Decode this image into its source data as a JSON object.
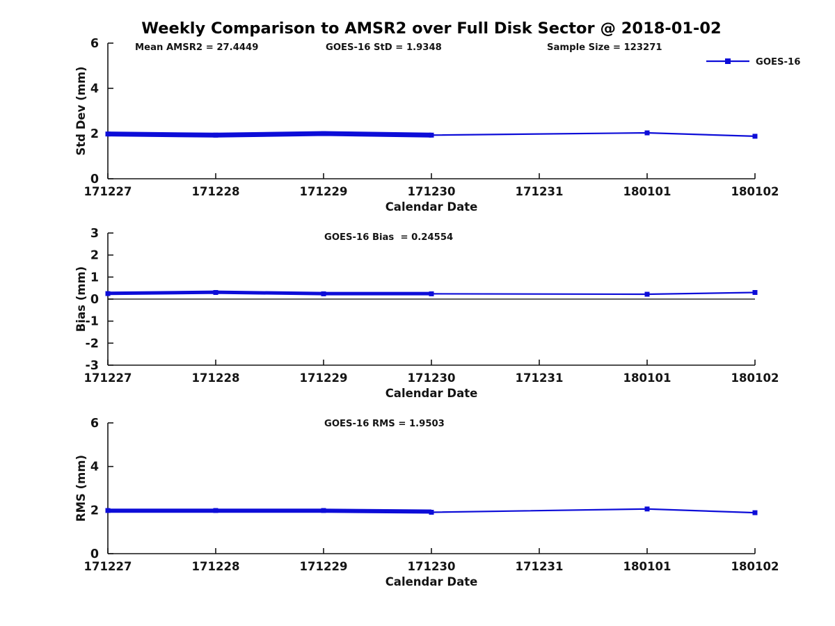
{
  "title": "Weekly Comparison to AMSR2 over Full Disk Sector @ 2018-01-02",
  "legend": {
    "label": "GOES-16",
    "color": "#0d0dd8",
    "marker": "square",
    "position": "top-right-of-first-subplot"
  },
  "x_axis_label": "Calendar Date",
  "chart_data": [
    {
      "id": "std_dev",
      "type": "line",
      "annotations": [
        "Mean AMSR2 = 27.4449",
        "GOES-16 StD = 1.9348",
        "Sample Size = 123271"
      ],
      "ylabel": "Std Dev (mm)",
      "xlabel": "Calendar Date",
      "ylim": [
        0,
        6
      ],
      "yticks": [
        0,
        2,
        4,
        6
      ],
      "grid": false,
      "zero_line": false,
      "categories": [
        "171227",
        "171228",
        "171229",
        "171230",
        "171231",
        "180101",
        "180102"
      ],
      "series": [
        {
          "name": "GOES-16",
          "color": "#0d0dd8",
          "marker": "square",
          "values": [
            1.98,
            1.93,
            2.0,
            1.93,
            null,
            2.03,
            1.88
          ]
        }
      ],
      "overlap_band": {
        "note": "multiple overlapping weekly traces 171227-171230",
        "values": [
          1.98,
          1.93,
          2.0,
          1.93,
          null,
          null,
          null
        ]
      }
    },
    {
      "id": "bias",
      "type": "line",
      "annotations": [
        "GOES-16 Bias  = 0.24554"
      ],
      "ylabel": "Bias (mm)",
      "xlabel": "Calendar Date",
      "ylim": [
        -3,
        3
      ],
      "yticks": [
        -3,
        -2,
        -1,
        0,
        1,
        2,
        3
      ],
      "grid": false,
      "zero_line": true,
      "categories": [
        "171227",
        "171228",
        "171229",
        "171230",
        "171231",
        "180101",
        "180102"
      ],
      "series": [
        {
          "name": "GOES-16",
          "color": "#0d0dd8",
          "marker": "square",
          "values": [
            0.25,
            0.3,
            0.24,
            0.24,
            null,
            0.22,
            0.3
          ]
        }
      ],
      "overlap_band": {
        "note": "multiple overlapping weekly traces 171227-171230",
        "values": [
          0.26,
          0.31,
          0.25,
          0.25,
          null,
          null,
          null
        ]
      }
    },
    {
      "id": "rms",
      "type": "line",
      "annotations": [
        "GOES-16 RMS = 1.9503"
      ],
      "ylabel": "RMS (mm)",
      "xlabel": "Calendar Date",
      "ylim": [
        0,
        6
      ],
      "yticks": [
        0,
        2,
        4,
        6
      ],
      "grid": false,
      "zero_line": false,
      "categories": [
        "171227",
        "171228",
        "171229",
        "171230",
        "171231",
        "180101",
        "180102"
      ],
      "series": [
        {
          "name": "GOES-16",
          "color": "#0d0dd8",
          "marker": "square",
          "values": [
            1.98,
            1.98,
            1.98,
            1.9,
            null,
            2.05,
            1.88
          ]
        }
      ],
      "overlap_band": {
        "note": "multiple overlapping weekly traces 171227-171230",
        "values": [
          1.97,
          1.97,
          1.97,
          1.93,
          null,
          null,
          null
        ]
      }
    }
  ]
}
